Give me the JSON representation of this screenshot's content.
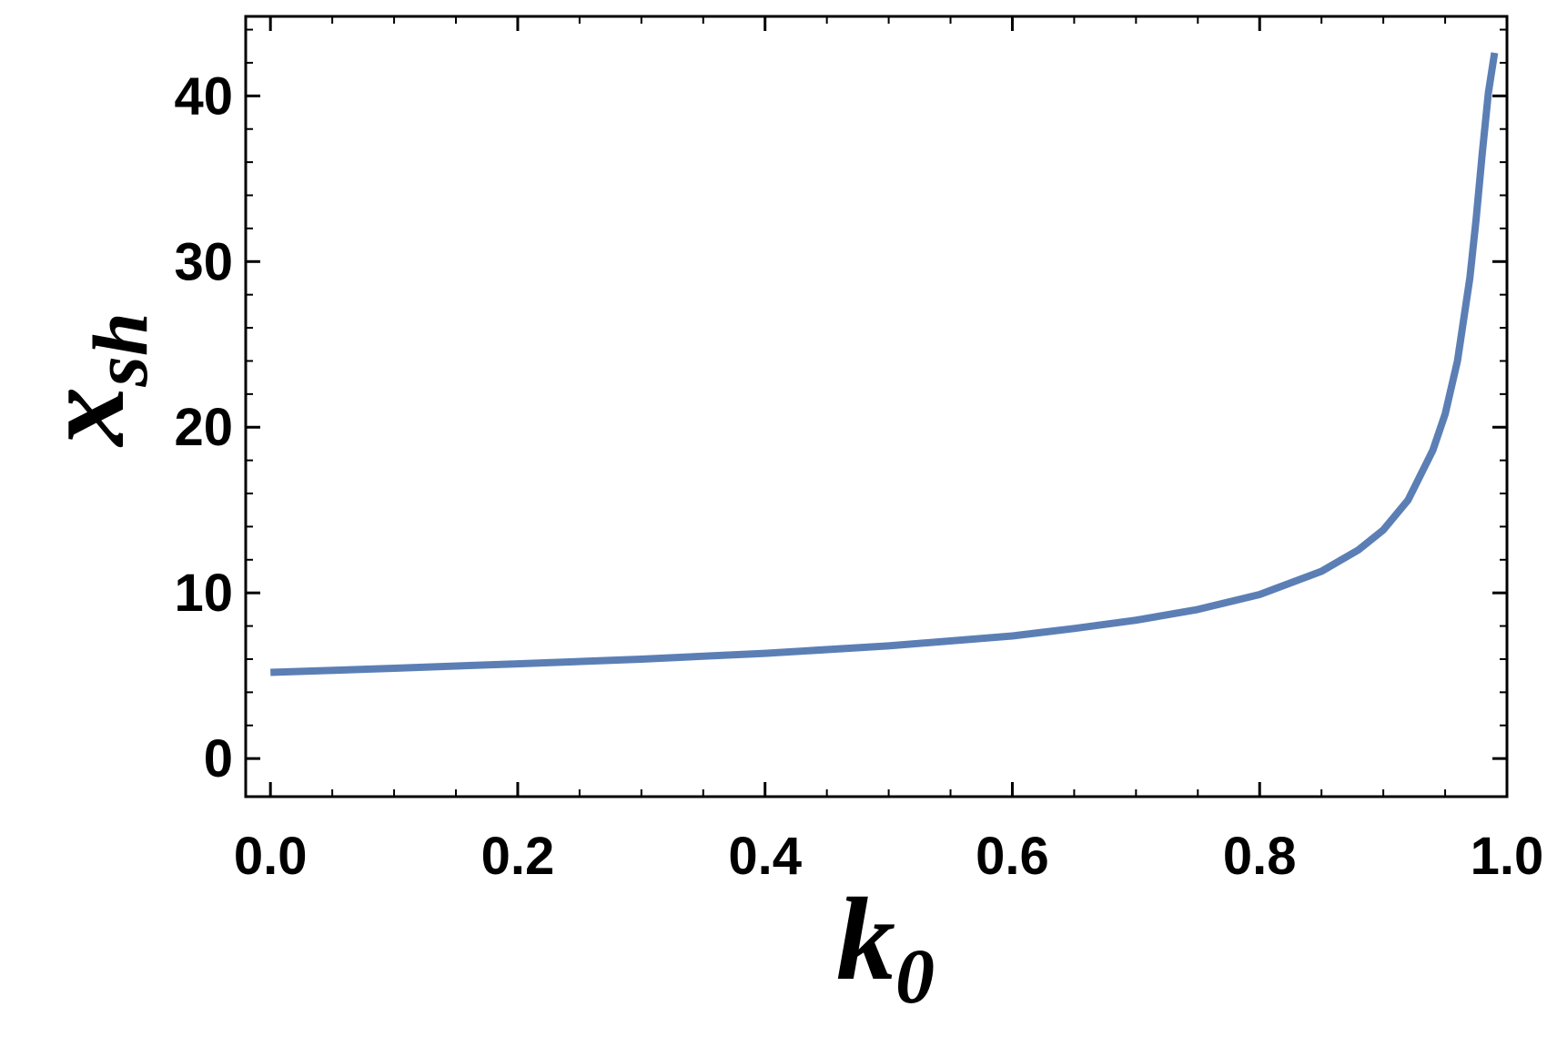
{
  "chart_data": {
    "type": "line",
    "xlabel": {
      "main": "k",
      "sub": "0"
    },
    "ylabel": {
      "main": "x",
      "sub": "sh"
    },
    "xlim": [
      -0.02,
      1.0
    ],
    "ylim": [
      -2.3,
      44.8
    ],
    "x_ticks": [
      "0.0",
      "0.2",
      "0.4",
      "0.6",
      "0.8",
      "1.0"
    ],
    "x_tick_values": [
      0.0,
      0.2,
      0.4,
      0.6,
      0.8,
      1.0
    ],
    "y_ticks": [
      "0",
      "10",
      "20",
      "30",
      "40"
    ],
    "y_tick_values": [
      0,
      10,
      20,
      30,
      40
    ],
    "grid": false,
    "line_color": "#5b7fb5",
    "series": [
      {
        "x": [
          0.0,
          0.1,
          0.2,
          0.3,
          0.4,
          0.5,
          0.6,
          0.65,
          0.7,
          0.75,
          0.8,
          0.85,
          0.88,
          0.9,
          0.92,
          0.94,
          0.95,
          0.96,
          0.97,
          0.975,
          0.98,
          0.985,
          0.99
        ],
        "y": [
          5.2,
          5.45,
          5.72,
          6.0,
          6.35,
          6.8,
          7.4,
          7.85,
          8.35,
          9.0,
          9.9,
          11.3,
          12.6,
          13.8,
          15.6,
          18.6,
          20.8,
          24.0,
          29.0,
          32.5,
          36.5,
          40.2,
          42.6
        ]
      }
    ]
  }
}
